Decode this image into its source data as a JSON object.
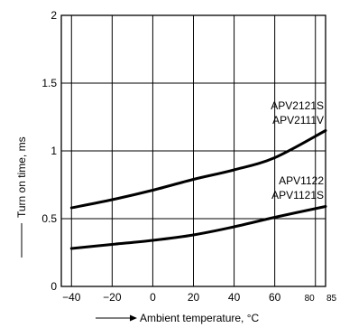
{
  "chart_data": {
    "type": "line",
    "xlabel": "Ambient temperature, °C",
    "ylabel": "Turn on time, ms",
    "xlim": [
      -45,
      85
    ],
    "ylim": [
      0,
      2
    ],
    "x_ticks": [
      -40,
      -20,
      0,
      20,
      40,
      60,
      80,
      85
    ],
    "y_ticks": [
      0,
      0.5,
      1,
      1.5,
      2
    ],
    "grid": true,
    "series": [
      {
        "name": "APV2121S APV2111V",
        "label_lines": [
          "APV2121S",
          "APV2111V"
        ],
        "x": [
          -40,
          -20,
          0,
          20,
          40,
          60,
          85
        ],
        "y": [
          0.58,
          0.64,
          0.71,
          0.79,
          0.86,
          0.95,
          1.15
        ]
      },
      {
        "name": "APV1122 APV1121S",
        "label_lines": [
          "APV1122",
          "APV1121S"
        ],
        "x": [
          -40,
          -20,
          0,
          20,
          40,
          60,
          85
        ],
        "y": [
          0.28,
          0.31,
          0.34,
          0.38,
          0.44,
          0.51,
          0.59
        ]
      }
    ]
  }
}
